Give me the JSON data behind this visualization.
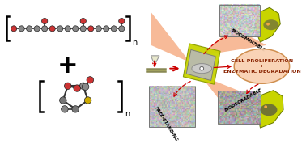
{
  "bg_color": "#ffffff",
  "green_color": "#c8d400",
  "salmon_color": "#f4a070",
  "light_salmon": "#f9d0b0",
  "red_color": "#cc0000",
  "text_biocompatible": "BIOCOMPATIBLE",
  "text_free_standing": "FREE-STANDING",
  "text_biodegradable": "BIODEGRADABLE",
  "text_cell_prolif": "CELL PROLIFERATION\n+\nENZYMATIC DEGRADATION"
}
